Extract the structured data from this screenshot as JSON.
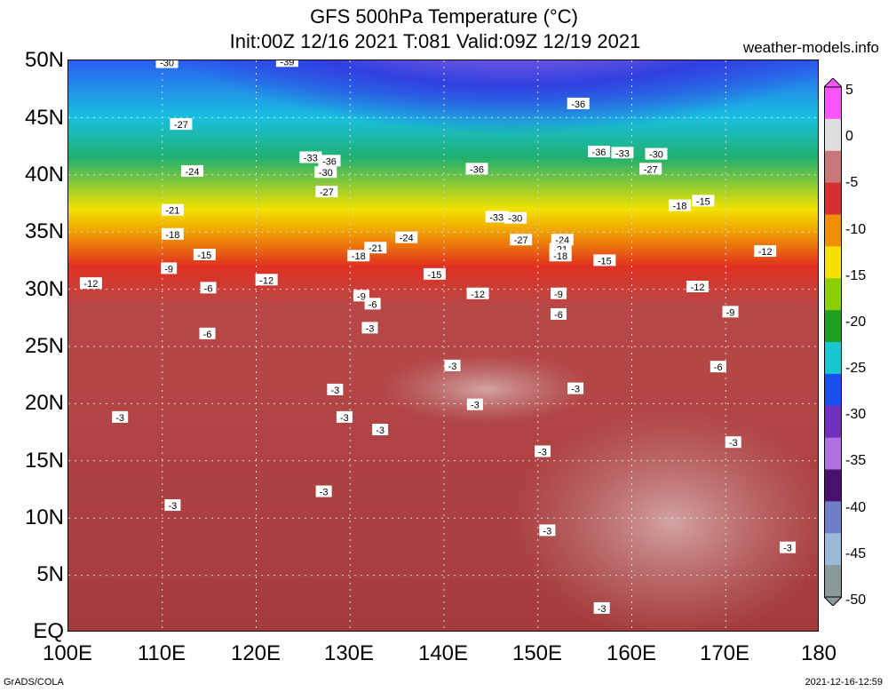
{
  "header": {
    "title": "GFS 500hPa Temperature (°C)",
    "subtitle": "Init:00Z 12/16 2021 T:081 Valid:09Z 12/19 2021",
    "site": "weather-models.info"
  },
  "axes": {
    "lat_labels": [
      "50N",
      "45N",
      "40N",
      "35N",
      "30N",
      "25N",
      "20N",
      "15N",
      "10N",
      "5N",
      "EQ"
    ],
    "lon_labels": [
      "100E",
      "110E",
      "120E",
      "130E",
      "140E",
      "150E",
      "160E",
      "170E",
      "180"
    ]
  },
  "colorbar": {
    "labels": [
      "5",
      "0",
      "-5",
      "-10",
      "-15",
      "-20",
      "-25",
      "-30",
      "-35",
      "-40",
      "-45",
      "-50"
    ],
    "colors": [
      "#ff55ff",
      "#dddddd",
      "#c87878",
      "#d83030",
      "#f09000",
      "#f5e000",
      "#8ad000",
      "#20a020",
      "#18c8d0",
      "#1850f0",
      "#7030c0",
      "#b070e0",
      "#4a1070",
      "#7080c8",
      "#9cb8d8",
      "#8a9a9a"
    ],
    "palette_names": {
      "warm": "#a84040",
      "magenta": "#e040e0"
    }
  },
  "contour_labels": [
    {
      "text": "-30",
      "lon": 110.5,
      "lat": 49.8
    },
    {
      "text": "-39",
      "lon": 123.3,
      "lat": 49.9
    },
    {
      "text": "-36",
      "lon": 154.3,
      "lat": 46.2
    },
    {
      "text": "-27",
      "lon": 112.0,
      "lat": 44.4
    },
    {
      "text": "-36",
      "lon": 156.5,
      "lat": 42.0
    },
    {
      "text": "-33",
      "lon": 159.0,
      "lat": 41.9
    },
    {
      "text": "-30",
      "lon": 162.6,
      "lat": 41.8
    },
    {
      "text": "-33",
      "lon": 125.8,
      "lat": 41.5
    },
    {
      "text": "-36",
      "lon": 127.8,
      "lat": 41.2
    },
    {
      "text": "-27",
      "lon": 162.0,
      "lat": 40.5
    },
    {
      "text": "-36",
      "lon": 143.5,
      "lat": 40.5
    },
    {
      "text": "-30",
      "lon": 127.4,
      "lat": 40.2
    },
    {
      "text": "-24",
      "lon": 113.2,
      "lat": 40.3
    },
    {
      "text": "-27",
      "lon": 127.5,
      "lat": 38.5
    },
    {
      "text": "-18",
      "lon": 165.1,
      "lat": 37.3
    },
    {
      "text": "-15",
      "lon": 167.6,
      "lat": 37.7
    },
    {
      "text": "-21",
      "lon": 111.1,
      "lat": 36.9
    },
    {
      "text": "-33",
      "lon": 145.6,
      "lat": 36.3
    },
    {
      "text": "-30",
      "lon": 147.6,
      "lat": 36.2
    },
    {
      "text": "-18",
      "lon": 111.1,
      "lat": 34.8
    },
    {
      "text": "-24",
      "lon": 136.0,
      "lat": 34.5
    },
    {
      "text": "-27",
      "lon": 148.2,
      "lat": 34.3
    },
    {
      "text": "-24",
      "lon": 152.6,
      "lat": 34.3
    },
    {
      "text": "-21",
      "lon": 132.7,
      "lat": 33.6
    },
    {
      "text": "-21",
      "lon": 152.4,
      "lat": 33.5
    },
    {
      "text": "-12",
      "lon": 174.2,
      "lat": 33.3
    },
    {
      "text": "-18",
      "lon": 130.9,
      "lat": 32.9
    },
    {
      "text": "-18",
      "lon": 152.4,
      "lat": 32.9
    },
    {
      "text": "-15",
      "lon": 114.5,
      "lat": 33.0
    },
    {
      "text": "-15",
      "lon": 157.1,
      "lat": 32.5
    },
    {
      "text": "-9",
      "lon": 110.7,
      "lat": 31.8
    },
    {
      "text": "-15",
      "lon": 139.0,
      "lat": 31.3
    },
    {
      "text": "-12",
      "lon": 102.4,
      "lat": 30.5
    },
    {
      "text": "-12",
      "lon": 121.1,
      "lat": 30.8
    },
    {
      "text": "-6",
      "lon": 114.9,
      "lat": 30.1
    },
    {
      "text": "-12",
      "lon": 167.0,
      "lat": 30.2
    },
    {
      "text": "-12",
      "lon": 143.6,
      "lat": 29.6
    },
    {
      "text": "-9",
      "lon": 131.2,
      "lat": 29.4
    },
    {
      "text": "-9",
      "lon": 152.2,
      "lat": 29.6
    },
    {
      "text": "-6",
      "lon": 132.4,
      "lat": 28.7
    },
    {
      "text": "-9",
      "lon": 170.5,
      "lat": 28.0
    },
    {
      "text": "-6",
      "lon": 152.2,
      "lat": 27.8
    },
    {
      "text": "-3",
      "lon": 132.1,
      "lat": 26.6
    },
    {
      "text": "-6",
      "lon": 114.8,
      "lat": 26.1
    },
    {
      "text": "-3",
      "lon": 140.9,
      "lat": 23.3
    },
    {
      "text": "-6",
      "lon": 169.2,
      "lat": 23.2
    },
    {
      "text": "-3",
      "lon": 128.4,
      "lat": 21.2
    },
    {
      "text": "-3",
      "lon": 154.0,
      "lat": 21.3
    },
    {
      "text": "-3",
      "lon": 143.3,
      "lat": 19.9
    },
    {
      "text": "-3",
      "lon": 105.5,
      "lat": 18.8
    },
    {
      "text": "-3",
      "lon": 129.4,
      "lat": 18.8
    },
    {
      "text": "-3",
      "lon": 133.2,
      "lat": 17.7
    },
    {
      "text": "-3",
      "lon": 170.8,
      "lat": 16.6
    },
    {
      "text": "-3",
      "lon": 150.5,
      "lat": 15.8
    },
    {
      "text": "-3",
      "lon": 127.2,
      "lat": 12.3
    },
    {
      "text": "-3",
      "lon": 111.1,
      "lat": 11.1
    },
    {
      "text": "-3",
      "lon": 151.0,
      "lat": 8.9
    },
    {
      "text": "-3",
      "lon": 176.6,
      "lat": 7.4
    },
    {
      "text": "-3",
      "lon": 156.8,
      "lat": 2.1
    }
  ],
  "footer": {
    "left": "GrADS/COLA",
    "right": "2021-12-16-12:59"
  }
}
